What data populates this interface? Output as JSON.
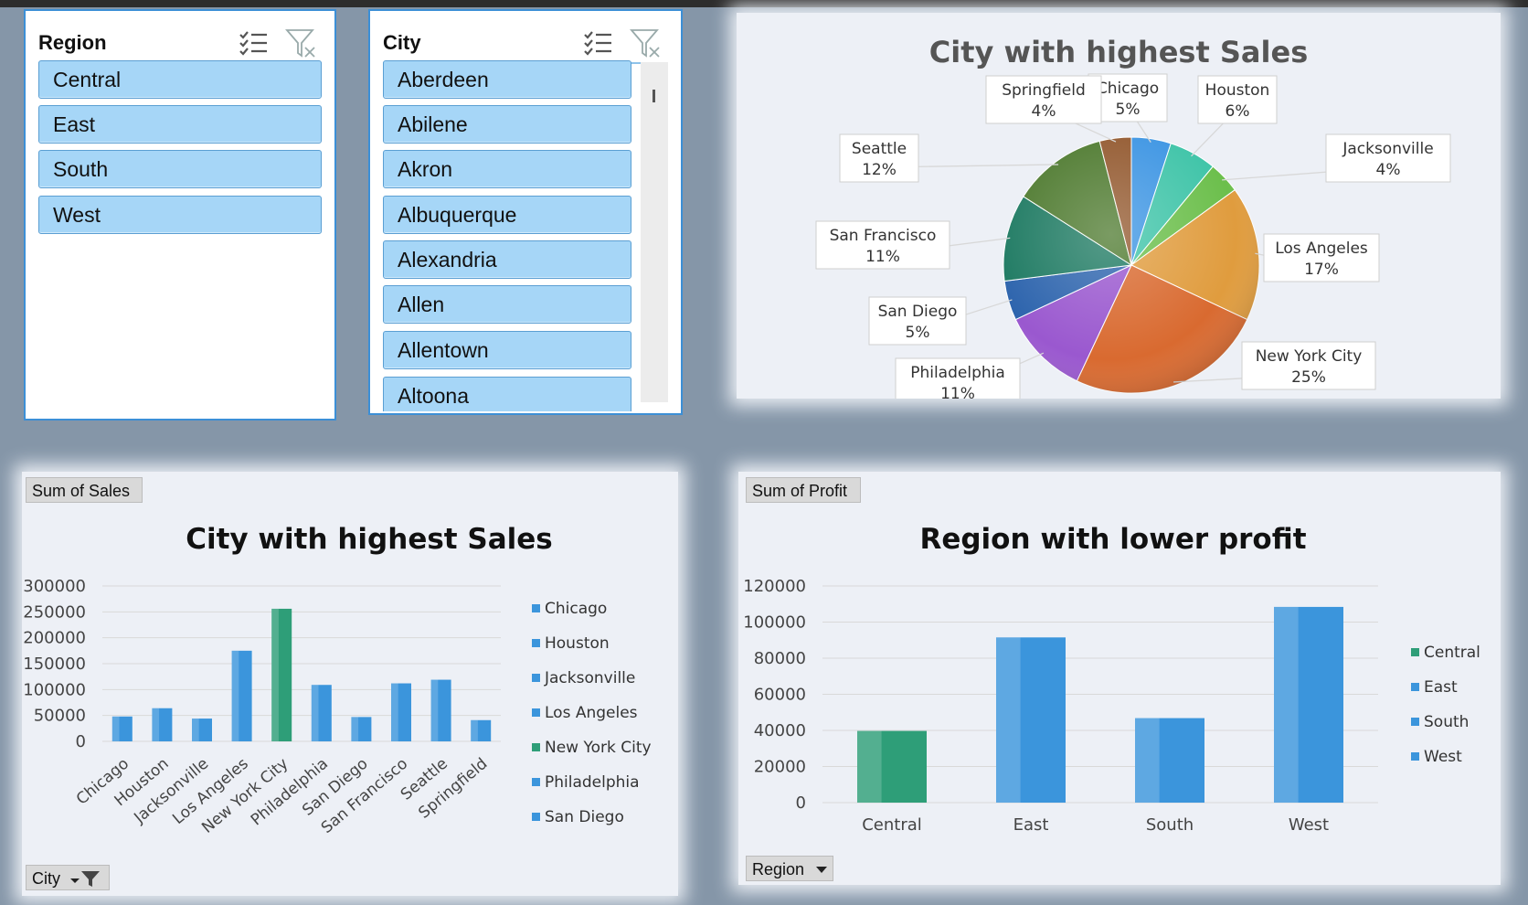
{
  "region_slicer": {
    "title": "Region",
    "items": [
      "Central",
      "East",
      "South",
      "West"
    ]
  },
  "city_slicer": {
    "title": "City",
    "items": [
      "Aberdeen",
      "Abilene",
      "Akron",
      "Albuquerque",
      "Alexandria",
      "Allen",
      "Allentown",
      "Altoona"
    ]
  },
  "icons": {
    "multi_select": "multi-select-icon",
    "clear_filter": "clear-filter-icon",
    "filter": "filter-icon",
    "dropdown": "dropdown-arrow-icon"
  },
  "colors": {
    "slicer_item": "#a6d6f7",
    "bar_blue": "#3b95dc",
    "bar_green": "#2e9e78"
  },
  "sales_bar": {
    "field_label": "Sum of Sales",
    "axis_field": "City"
  },
  "profit_bar": {
    "field_label": "Sum of Profit",
    "axis_field": "Region"
  },
  "chart_data": [
    {
      "type": "pie",
      "title": "City with highest Sales",
      "slices": [
        {
          "label": "Chicago",
          "pct": "5%",
          "value": 5,
          "color": "#3d95e3"
        },
        {
          "label": "Houston",
          "pct": "6%",
          "value": 6,
          "color": "#3fc4a8"
        },
        {
          "label": "Jacksonville",
          "pct": "4%",
          "value": 4,
          "color": "#6cbf4c"
        },
        {
          "label": "Los Angeles",
          "pct": "17%",
          "value": 17,
          "color": "#e09c3e"
        },
        {
          "label": "New York City",
          "pct": "25%",
          "value": 25,
          "color": "#d96a30"
        },
        {
          "label": "Philadelphia",
          "pct": "11%",
          "value": 11,
          "color": "#9a58cf"
        },
        {
          "label": "San Diego",
          "pct": "5%",
          "value": 5,
          "color": "#2d64ad"
        },
        {
          "label": "San Francisco",
          "pct": "11%",
          "value": 11,
          "color": "#1e7a62"
        },
        {
          "label": "Seattle",
          "pct": "12%",
          "value": 12,
          "color": "#4e7a2f"
        },
        {
          "label": "Springfield",
          "pct": "4%",
          "value": 4,
          "color": "#93592f"
        }
      ]
    },
    {
      "type": "bar",
      "title": "City with highest Sales",
      "categories": [
        "Chicago",
        "Houston",
        "Jacksonville",
        "Los Angeles",
        "New York City",
        "Philadelphia",
        "San Diego",
        "San Francisco",
        "Seattle",
        "Springfield"
      ],
      "values": [
        48000,
        64000,
        44000,
        175000,
        256000,
        109000,
        47000,
        112000,
        119000,
        41000
      ],
      "highlight": "New York City",
      "ylim": [
        0,
        300000
      ],
      "yticks": [
        "300000",
        "250000",
        "200000",
        "150000",
        "100000",
        "50000",
        "0"
      ],
      "yticks_values": [
        300000,
        250000,
        200000,
        150000,
        100000,
        50000,
        0
      ],
      "legend": [
        "Chicago",
        "Houston",
        "Jacksonville",
        "Los Angeles",
        "New York City",
        "Philadelphia",
        "San Diego"
      ],
      "legend_placement": "right",
      "grid": true
    },
    {
      "type": "bar",
      "title": "Region with lower profit",
      "categories": [
        "Central",
        "East",
        "South",
        "West"
      ],
      "values": [
        39700,
        91500,
        46800,
        108400
      ],
      "highlight": "Central",
      "ylim": [
        0,
        120000
      ],
      "yticks": [
        "120000",
        "100000",
        "80000",
        "60000",
        "40000",
        "20000",
        "0"
      ],
      "yticks_values": [
        120000,
        100000,
        80000,
        60000,
        40000,
        20000,
        0
      ],
      "legend": [
        "Central",
        "East",
        "South",
        "West"
      ],
      "legend_placement": "right",
      "grid": true
    }
  ]
}
